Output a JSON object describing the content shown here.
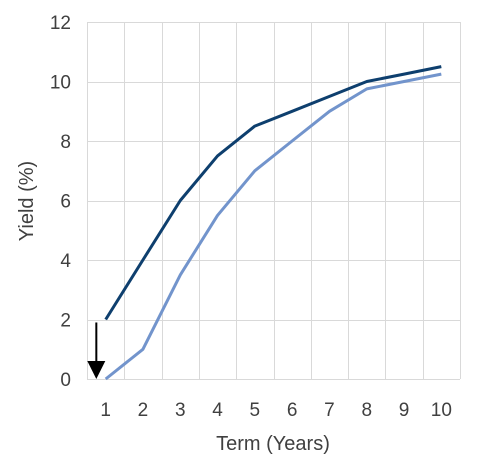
{
  "chart_data": {
    "type": "line",
    "title": "",
    "xlabel": "Term (Years)",
    "ylabel": "Yield (%)",
    "x": [
      1,
      2,
      3,
      4,
      5,
      6,
      7,
      8,
      9,
      10
    ],
    "xlim": [
      0.5,
      10.5
    ],
    "ylim": [
      0,
      12
    ],
    "x_ticks": [
      "1",
      "2",
      "3",
      "4",
      "5",
      "6",
      "7",
      "8",
      "9",
      "10"
    ],
    "y_ticks": [
      "0",
      "2",
      "4",
      "6",
      "8",
      "10",
      "12"
    ],
    "grid": true,
    "series": [
      {
        "color": "#0e3f6e",
        "values": [
          2.0,
          4.0,
          6.0,
          7.5,
          8.5,
          9.0,
          9.5,
          10.0,
          10.25,
          10.5
        ]
      },
      {
        "color": "#7294cc",
        "values": [
          0.0,
          1.0,
          3.5,
          5.5,
          7.0,
          8.0,
          9.0,
          9.75,
          10.0,
          10.25
        ]
      }
    ],
    "annotation": {
      "type": "arrow",
      "color": "#000000",
      "x": 0.75,
      "y_from": 1.9,
      "y_to": 0
    }
  }
}
